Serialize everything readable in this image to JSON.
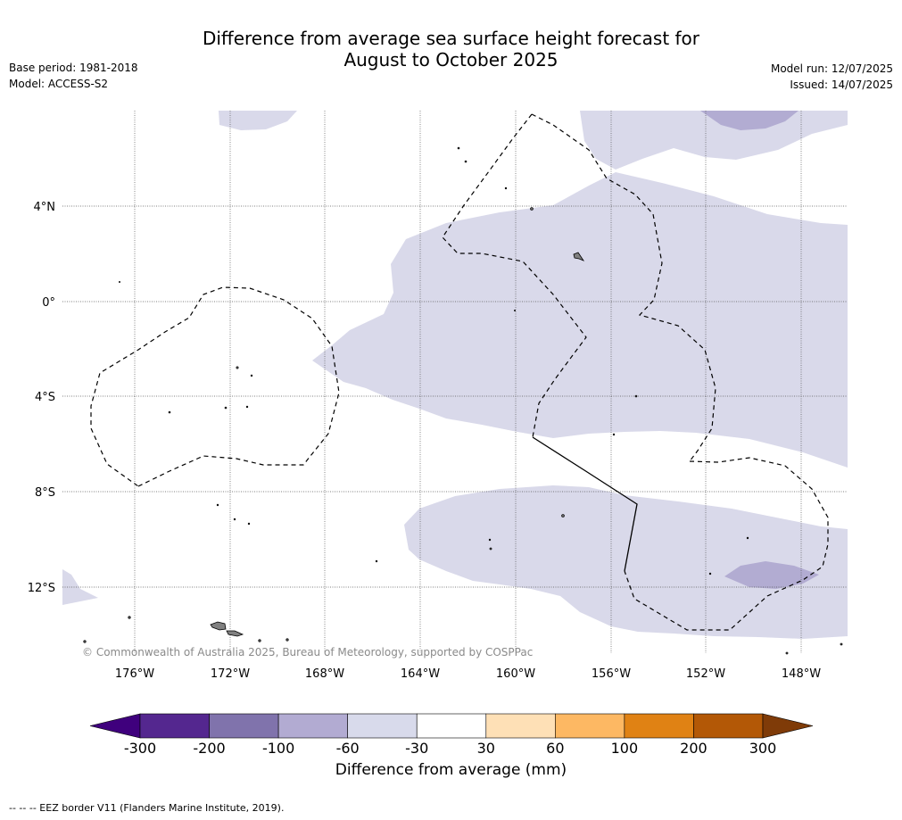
{
  "title": {
    "line1": "Difference from average sea surface height forecast for",
    "line2": "August to October 2025"
  },
  "meta_left": {
    "base_period": "Base period: 1981-2018",
    "model": "Model: ACCESS-S2"
  },
  "meta_right": {
    "model_run": "Model run: 12/07/2025",
    "issued": "Issued: 14/07/2025"
  },
  "map": {
    "lon_labels": [
      "176°W",
      "172°W",
      "168°W",
      "164°W",
      "160°W",
      "156°W",
      "152°W",
      "148°W"
    ],
    "lat_labels": [
      "4°N",
      "0°",
      "4°S",
      "8°S",
      "12°S"
    ],
    "gridlines": "dotted",
    "copyright": "© Commonwealth of Australia 2025, Bureau of Meteorology, supported by COSPPac",
    "colors": {
      "light_purple_fill": "#d9d9ea",
      "mid_purple_fill": "#b2acd2",
      "land": "#808080",
      "eez_border": "#000000"
    }
  },
  "colorbar": {
    "tick_labels": [
      "-300",
      "-200",
      "-100",
      "-60",
      "-30",
      "30",
      "60",
      "100",
      "200",
      "300"
    ],
    "colors": [
      "#3f007d",
      "#54278f",
      "#8073ac",
      "#b2abd2",
      "#d8daeb",
      "#ffffff",
      "#fee0b6",
      "#fdb863",
      "#e08214",
      "#b35806",
      "#7f3b08"
    ],
    "label": "Difference from average (mm)"
  },
  "footnote": "-- -- -- EEZ border V11 (Flanders Marine Institute, 2019)."
}
